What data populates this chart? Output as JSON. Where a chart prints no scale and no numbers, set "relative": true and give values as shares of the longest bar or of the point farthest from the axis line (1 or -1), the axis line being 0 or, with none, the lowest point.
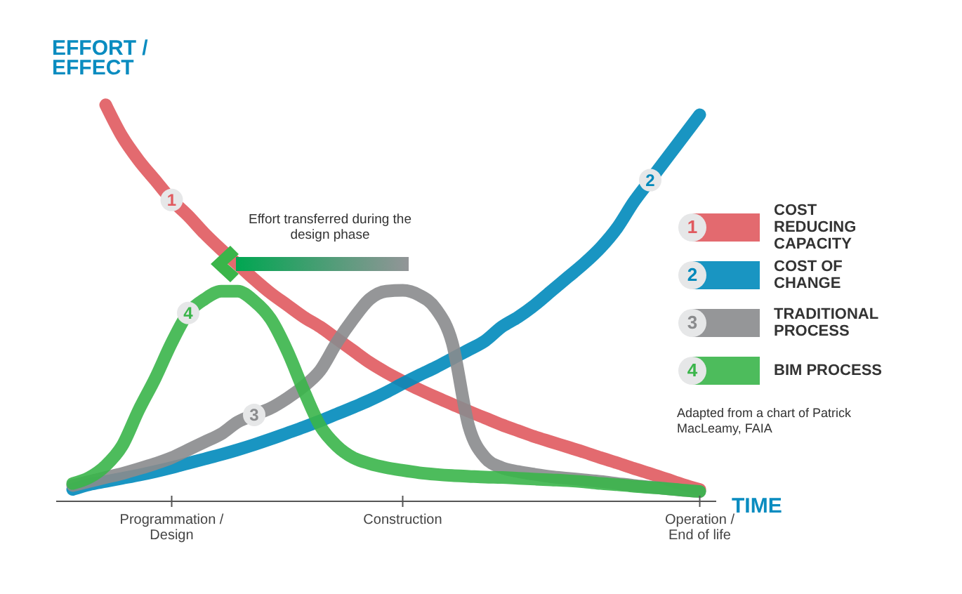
{
  "chart_data": {
    "type": "line",
    "relative": true,
    "ylabel": "EFFORT / EFFECT",
    "xlabel": "TIME",
    "categories": [
      null,
      null,
      null,
      null,
      null,
      null,
      "Programmation / Design",
      null,
      null,
      null,
      null,
      null,
      null,
      null,
      null,
      null,
      null,
      null,
      null,
      null,
      "Construction",
      null,
      null,
      null,
      null,
      null,
      null,
      null,
      null,
      null,
      null,
      null,
      null,
      null,
      null,
      null,
      null,
      null,
      "Operation / End of life"
    ],
    "series": [
      {
        "name": "COST REDUCING CAPACITY",
        "color": "#e05a5f",
        "values": [
          null,
          null,
          1,
          0.92,
          0.86,
          0.81,
          0.76,
          0.72,
          0.675,
          0.635,
          0.598,
          0.56,
          0.525,
          0.495,
          0.465,
          0.44,
          0.41,
          0.38,
          0.35,
          0.325,
          0.303,
          0.282,
          0.263,
          0.245,
          0.227,
          0.21,
          0.193,
          0.178,
          0.163,
          0.15,
          0.137,
          0.124,
          0.11,
          0.097,
          0.083,
          0.07,
          0.056,
          0.042,
          0.03
        ]
      },
      {
        "name": "COST OF CHANGE",
        "color": "#0089bb",
        "values": [
          0.03,
          0.042,
          0.05,
          0.058,
          0.066,
          0.075,
          0.085,
          0.096,
          0.107,
          0.118,
          0.13,
          0.143,
          0.157,
          0.172,
          0.187,
          0.203,
          0.22,
          0.237,
          0.255,
          0.275,
          0.297,
          0.318,
          0.338,
          0.36,
          0.382,
          0.405,
          0.44,
          0.465,
          0.495,
          0.53,
          0.565,
          0.6,
          0.64,
          0.69,
          0.755,
          0.81,
          0.865,
          0.92,
          0.975
        ]
      },
      {
        "name": "TRADITIONAL PROCESS",
        "color": "#8a8b8d",
        "values": [
          0.04,
          0.05,
          0.06,
          0.07,
          0.082,
          0.095,
          0.11,
          0.13,
          0.15,
          0.17,
          0.2,
          0.218,
          0.235,
          0.26,
          0.29,
          0.33,
          0.4,
          0.46,
          0.51,
          0.53,
          0.532,
          0.52,
          0.486,
          0.4,
          0.19,
          0.11,
          0.085,
          0.075,
          0.068,
          0.062,
          0.058,
          0.054,
          0.05,
          0.045,
          0.04,
          0.036,
          0.032,
          0.028,
          0.025
        ]
      },
      {
        "name": "BIM PROCESS",
        "color": "#3ab54a",
        "values": [
          0.045,
          0.06,
          0.09,
          0.14,
          0.23,
          0.31,
          0.4,
          0.475,
          0.51,
          0.53,
          0.53,
          0.505,
          0.46,
          0.38,
          0.28,
          0.19,
          0.14,
          0.11,
          0.095,
          0.085,
          0.078,
          0.072,
          0.068,
          0.065,
          0.063,
          0.061,
          0.06,
          0.058,
          0.056,
          0.054,
          0.052,
          0.049,
          0.045,
          0.042,
          0.038,
          0.035,
          0.032,
          0.028,
          0.025
        ]
      }
    ],
    "annotations": [
      "1",
      "2",
      "3",
      "4",
      "Effort transferred during the design phase",
      "Adapted from a chart of Patrick MacLeamy, FAIA"
    ],
    "legend": "right"
  }
}
